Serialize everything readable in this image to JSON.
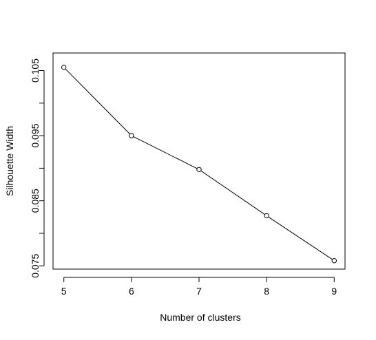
{
  "chart_data": {
    "type": "line",
    "title": "",
    "xlabel": "Number of clusters",
    "ylabel": "Silhouette Width",
    "x": [
      5,
      6,
      7,
      8,
      9
    ],
    "series": [
      {
        "values": [
          0.1055,
          0.095,
          0.0898,
          0.0827,
          0.0758
        ]
      }
    ],
    "xlim": [
      4.84,
      9.16
    ],
    "ylim": [
      0.0745,
      0.1077
    ],
    "x_ticks": [
      "5",
      "6",
      "7",
      "8",
      "9"
    ],
    "x_tick_values": [
      5,
      6,
      7,
      8,
      9
    ],
    "y_ticks": [
      "0.075",
      "0.085",
      "0.095",
      "0.105"
    ],
    "y_tick_values": [
      0.075,
      0.085,
      0.095,
      0.105
    ],
    "y_minor_tick_values": [
      0.08,
      0.09,
      0.1
    ],
    "markers": "open-circle",
    "grid": false,
    "legend": "none",
    "colors": {
      "line": "#000000",
      "axis": "#000000",
      "background": "#ffffff"
    }
  }
}
